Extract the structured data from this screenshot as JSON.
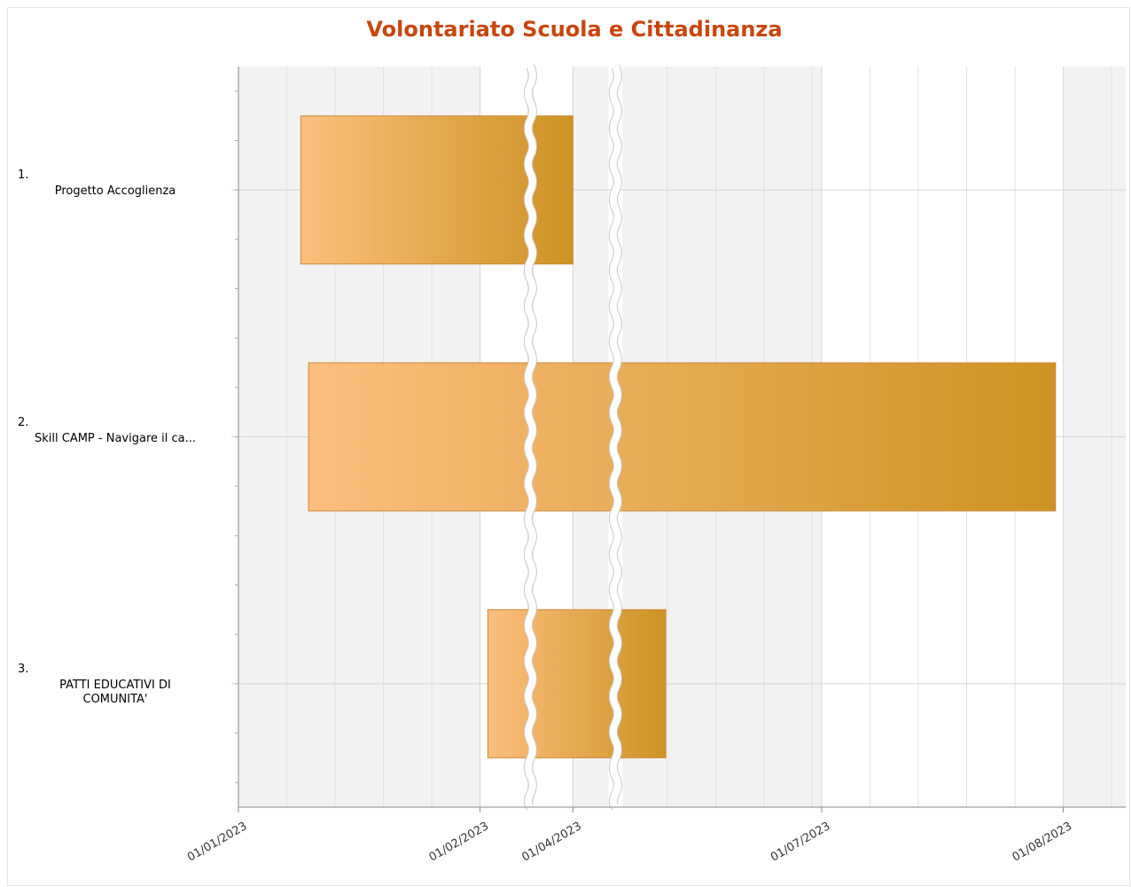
{
  "chart_data": {
    "type": "gantt",
    "title": "Volontariato Scuola e Cittadinanza",
    "tasks": [
      {
        "label": "1.",
        "name": "Progetto Accoglienza",
        "start": "09/01/2023",
        "end": "01/04/2023"
      },
      {
        "label": "2.",
        "name": "Skill CAMP - Navigare il ca...",
        "start": "10/01/2023",
        "end": "31/07/2023"
      },
      {
        "label": "3.",
        "name": "PATTI EDUCATIVI DI COMUNITA'",
        "start": "02/02/2023",
        "end": "11/06/2023"
      }
    ],
    "xlim": [
      "01/01/2023",
      "09/08/2023"
    ],
    "xticks": [
      "01/01/2023",
      "01/02/2023",
      "01/04/2023",
      "01/07/2023",
      "01/08/2023"
    ],
    "breaks": [
      [
        "07/02/2023",
        "27/03/2023"
      ],
      [
        "06/04/2023",
        "05/06/2023"
      ]
    ],
    "gradient": [
      "#fdbf7f",
      "#cd9322"
    ],
    "title_color": "#c8460c",
    "grid": true
  }
}
